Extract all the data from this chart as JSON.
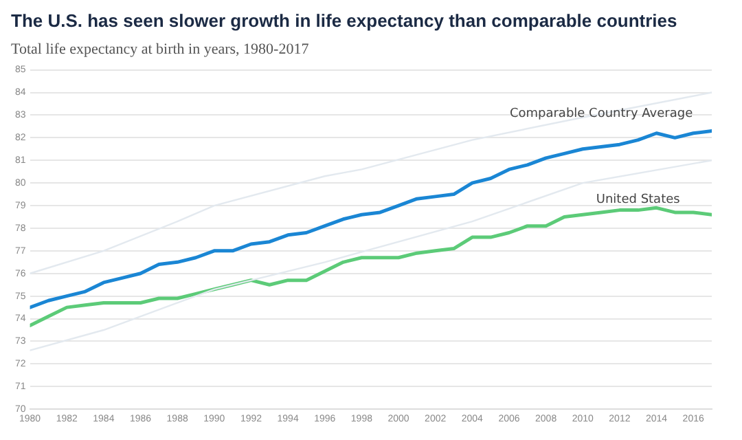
{
  "chart_data": {
    "type": "line",
    "title": "The U.S. has seen slower growth in life expectancy than comparable countries",
    "subtitle": "Total life expectancy at birth in years, 1980-2017",
    "series": [
      {
        "color": "#e3e9ef",
        "x": [
          1980,
          1984,
          1988,
          1990,
          1996,
          1998,
          2004,
          2010,
          2017
        ],
        "values": [
          76.0,
          77.0,
          78.3,
          79.0,
          80.3,
          80.6,
          81.9,
          82.9,
          84.0
        ]
      },
      {
        "color": "#e3e9ef",
        "x": [
          1980,
          1984,
          1990,
          1996,
          2004,
          2010,
          2017
        ],
        "values": [
          72.6,
          73.5,
          75.3,
          76.5,
          78.3,
          80.0,
          81.0
        ]
      },
      {
        "color": "#1a86d4",
        "x": [
          1980,
          1981,
          1982,
          1983,
          1984,
          1985,
          1986,
          1987,
          1988,
          1989,
          1990,
          1991,
          1992,
          1993,
          1994,
          1995,
          1996,
          1997,
          1998,
          1999,
          2000,
          2001,
          2002,
          2003,
          2004,
          2005,
          2006,
          2007,
          2008,
          2009,
          2010,
          2011,
          2012,
          2013,
          2014,
          2015,
          2016,
          2017
        ],
        "values": [
          74.5,
          74.8,
          75.0,
          75.2,
          75.6,
          75.8,
          76.0,
          76.4,
          76.5,
          76.7,
          77.0,
          77.0,
          77.3,
          77.4,
          77.7,
          77.8,
          78.1,
          78.4,
          78.6,
          78.7,
          79.0,
          79.3,
          79.4,
          79.5,
          80.0,
          80.2,
          80.6,
          80.8,
          81.1,
          81.3,
          81.5,
          81.6,
          81.7,
          81.9,
          82.2,
          82.0,
          82.2,
          82.3
        ]
      },
      {
        "color": "#5ccb78",
        "x": [
          1980,
          1981,
          1982,
          1983,
          1984,
          1985,
          1986,
          1987,
          1988,
          1989,
          1990,
          1991,
          1992,
          1993,
          1994,
          1995,
          1996,
          1997,
          1998,
          1999,
          2000,
          2001,
          2002,
          2003,
          2004,
          2005,
          2006,
          2007,
          2008,
          2009,
          2010,
          2011,
          2012,
          2013,
          2014,
          2015,
          2016,
          2017
        ],
        "values": [
          73.7,
          74.1,
          74.5,
          74.6,
          74.7,
          74.7,
          74.7,
          74.9,
          74.9,
          75.1,
          75.3,
          75.5,
          75.7,
          75.5,
          75.7,
          75.7,
          76.1,
          76.5,
          76.7,
          76.7,
          76.7,
          76.9,
          77.0,
          77.1,
          77.6,
          77.6,
          77.8,
          78.1,
          78.1,
          78.5,
          78.6,
          78.7,
          78.8,
          78.8,
          78.9,
          78.7,
          78.7,
          78.6
        ]
      }
    ],
    "annotations": [
      {
        "text": "Comparable Country Average",
        "x": 2011,
        "y": 82.8
      },
      {
        "text": "United States",
        "x": 2013,
        "y": 79.0
      }
    ],
    "xlim": [
      1980,
      2017
    ],
    "xticks": [
      1980,
      1982,
      1984,
      1986,
      1988,
      1990,
      1992,
      1994,
      1996,
      1998,
      2000,
      2002,
      2004,
      2006,
      2008,
      2010,
      2012,
      2014,
      2016
    ],
    "ylim": [
      70,
      85
    ],
    "yticks": [
      70,
      71,
      72,
      73,
      74,
      75,
      76,
      77,
      78,
      79,
      80,
      81,
      82,
      83,
      84,
      85
    ],
    "grid": "y",
    "legend": false,
    "marker": "none",
    "line_style": "solid"
  }
}
